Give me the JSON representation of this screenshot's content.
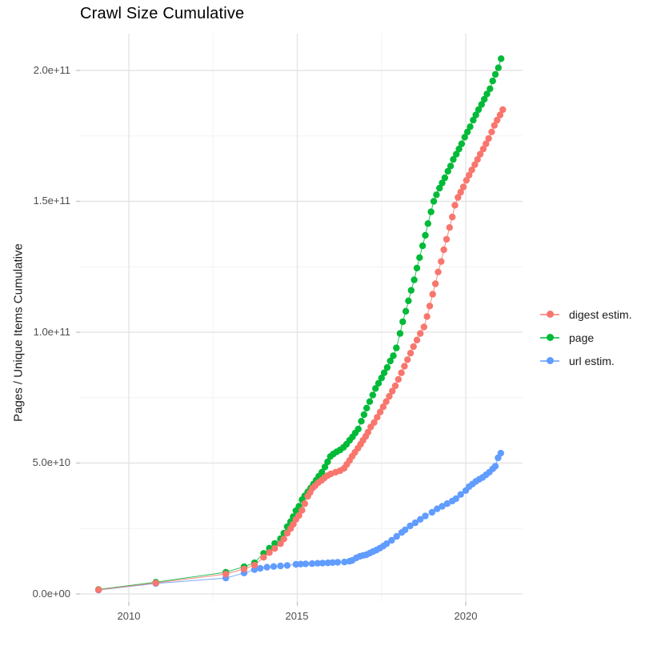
{
  "title": "Crawl Size Cumulative",
  "y_axis": {
    "label": "Pages / Unique Items Cumulative",
    "ticks": [
      "0.0e+00",
      "5.0e+10",
      "1.0e+11",
      "1.5e+11",
      "2.0e+11"
    ],
    "tick_values": [
      0,
      50000000000.0,
      100000000000.0,
      150000000000.0,
      200000000000.0
    ]
  },
  "x_axis": {
    "ticks": [
      "2010",
      "2015",
      "2020"
    ],
    "tick_values": [
      2010,
      2015,
      2020
    ]
  },
  "legend": {
    "items": [
      {
        "label": "digest estim.",
        "color": "#F8766D"
      },
      {
        "label": "page",
        "color": "#00BA38"
      },
      {
        "label": "url estim.",
        "color": "#619CFF"
      }
    ]
  },
  "chart_data": {
    "type": "scatter",
    "title": "Crawl Size Cumulative",
    "xlabel": "",
    "ylabel": "Pages / Unique Items Cumulative",
    "xlim": [
      2008.65,
      2021.7
    ],
    "ylim": [
      0,
      217000000000.0
    ],
    "x_major_ticks": [
      2010,
      2015,
      2020
    ],
    "x_minor_ticks": [
      2012.5,
      2017.5
    ],
    "y_major_ticks": [
      0,
      50000000000.0,
      100000000000.0,
      150000000000.0,
      200000000000.0
    ],
    "y_minor_ticks": [
      25000000000.0,
      75000000000.0,
      125000000000.0,
      175000000000.0
    ],
    "grid": true,
    "legend_position": "right",
    "series": [
      {
        "name": "page",
        "color": "#00BA38",
        "points": [
          [
            2009.1,
            1700000000.0
          ],
          [
            2010.8,
            4500000000.0
          ],
          [
            2012.88,
            8300000000.0
          ],
          [
            2013.42,
            10400000000.0
          ],
          [
            2013.73,
            11900000000.0
          ],
          [
            2014.0,
            15500000000.0
          ],
          [
            2014.17,
            17500000000.0
          ],
          [
            2014.33,
            19300000000.0
          ],
          [
            2014.5,
            21100000000.0
          ],
          [
            2014.6,
            23200000000.0
          ],
          [
            2014.7,
            25700000000.0
          ],
          [
            2014.8,
            27600000000.0
          ],
          [
            2014.88,
            29500000000.0
          ],
          [
            2014.96,
            31800000000.0
          ],
          [
            2015.05,
            33500000000.0
          ],
          [
            2015.14,
            36000000000.0
          ],
          [
            2015.22,
            37500000000.0
          ],
          [
            2015.31,
            39000000000.0
          ],
          [
            2015.4,
            40500000000.0
          ],
          [
            2015.48,
            42000000000.0
          ],
          [
            2015.56,
            43500000000.0
          ],
          [
            2015.64,
            45000000000.0
          ],
          [
            2015.73,
            46500000000.0
          ],
          [
            2015.82,
            48500000000.0
          ],
          [
            2015.9,
            50500000000.0
          ],
          [
            2015.98,
            52500000000.0
          ],
          [
            2016.07,
            53500000000.0
          ],
          [
            2016.17,
            54300000000.0
          ],
          [
            2016.27,
            55000000000.0
          ],
          [
            2016.37,
            56000000000.0
          ],
          [
            2016.46,
            57200000000.0
          ],
          [
            2016.55,
            58700000000.0
          ],
          [
            2016.64,
            60000000000.0
          ],
          [
            2016.72,
            61500000000.0
          ],
          [
            2016.81,
            63000000000.0
          ],
          [
            2016.9,
            66000000000.0
          ],
          [
            2016.98,
            68500000000.0
          ],
          [
            2017.06,
            71000000000.0
          ],
          [
            2017.15,
            73500000000.0
          ],
          [
            2017.24,
            76000000000.0
          ],
          [
            2017.32,
            78500000000.0
          ],
          [
            2017.41,
            80500000000.0
          ],
          [
            2017.5,
            82500000000.0
          ],
          [
            2017.58,
            84500000000.0
          ],
          [
            2017.67,
            86500000000.0
          ],
          [
            2017.76,
            89000000000.0
          ],
          [
            2017.85,
            91000000000.0
          ],
          [
            2017.94,
            94000000000.0
          ],
          [
            2018.05,
            99500000000.0
          ],
          [
            2018.13,
            104000000000.0
          ],
          [
            2018.22,
            108000000000.0
          ],
          [
            2018.3,
            112000000000.0
          ],
          [
            2018.38,
            116000000000.0
          ],
          [
            2018.47,
            120000000000.0
          ],
          [
            2018.55,
            124500000000.0
          ],
          [
            2018.63,
            128500000000.0
          ],
          [
            2018.72,
            133000000000.0
          ],
          [
            2018.8,
            137000000000.0
          ],
          [
            2018.88,
            141500000000.0
          ],
          [
            2018.97,
            146000000000.0
          ],
          [
            2019.05,
            150000000000.0
          ],
          [
            2019.13,
            152500000000.0
          ],
          [
            2019.22,
            155000000000.0
          ],
          [
            2019.3,
            157000000000.0
          ],
          [
            2019.38,
            159000000000.0
          ],
          [
            2019.47,
            161500000000.0
          ],
          [
            2019.55,
            163500000000.0
          ],
          [
            2019.63,
            166000000000.0
          ],
          [
            2019.72,
            168000000000.0
          ],
          [
            2019.8,
            170000000000.0
          ],
          [
            2019.88,
            172000000000.0
          ],
          [
            2019.97,
            174500000000.0
          ],
          [
            2020.05,
            176500000000.0
          ],
          [
            2020.13,
            178500000000.0
          ],
          [
            2020.22,
            181000000000.0
          ],
          [
            2020.3,
            183000000000.0
          ],
          [
            2020.38,
            185000000000.0
          ],
          [
            2020.47,
            187000000000.0
          ],
          [
            2020.55,
            189000000000.0
          ],
          [
            2020.63,
            191000000000.0
          ],
          [
            2020.72,
            193000000000.0
          ],
          [
            2020.8,
            196000000000.0
          ],
          [
            2020.88,
            198500000000.0
          ],
          [
            2020.97,
            201000000000.0
          ],
          [
            2021.05,
            204500000000.0
          ]
        ]
      },
      {
        "name": "url estim.",
        "color": "#619CFF",
        "points": [
          [
            2009.1,
            1500000000.0
          ],
          [
            2010.8,
            4000000000.0
          ],
          [
            2012.88,
            6100000000.0
          ],
          [
            2013.42,
            8000000000.0
          ],
          [
            2013.73,
            9300000000.0
          ],
          [
            2013.9,
            9800000000.0
          ],
          [
            2014.1,
            10200000000.0
          ],
          [
            2014.3,
            10500000000.0
          ],
          [
            2014.5,
            10700000000.0
          ],
          [
            2014.7,
            10900000000.0
          ],
          [
            2014.96,
            11300000000.0
          ],
          [
            2015.1,
            11400000000.0
          ],
          [
            2015.25,
            11500000000.0
          ],
          [
            2015.44,
            11600000000.0
          ],
          [
            2015.6,
            11700000000.0
          ],
          [
            2015.75,
            11800000000.0
          ],
          [
            2015.91,
            11900000000.0
          ],
          [
            2016.05,
            12000000000.0
          ],
          [
            2016.2,
            12100000000.0
          ],
          [
            2016.4,
            12200000000.0
          ],
          [
            2016.55,
            12500000000.0
          ],
          [
            2016.63,
            12800000000.0
          ],
          [
            2016.75,
            13800000000.0
          ],
          [
            2016.86,
            14400000000.0
          ],
          [
            2016.95,
            14700000000.0
          ],
          [
            2017.05,
            15000000000.0
          ],
          [
            2017.15,
            15600000000.0
          ],
          [
            2017.25,
            16200000000.0
          ],
          [
            2017.35,
            16800000000.0
          ],
          [
            2017.45,
            17500000000.0
          ],
          [
            2017.55,
            18300000000.0
          ],
          [
            2017.65,
            19200000000.0
          ],
          [
            2017.8,
            20500000000.0
          ],
          [
            2017.95,
            22000000000.0
          ],
          [
            2018.1,
            23500000000.0
          ],
          [
            2018.2,
            24500000000.0
          ],
          [
            2018.35,
            26000000000.0
          ],
          [
            2018.5,
            27200000000.0
          ],
          [
            2018.65,
            28500000000.0
          ],
          [
            2018.8,
            29800000000.0
          ],
          [
            2019.0,
            31200000000.0
          ],
          [
            2019.15,
            32500000000.0
          ],
          [
            2019.3,
            33500000000.0
          ],
          [
            2019.45,
            34500000000.0
          ],
          [
            2019.6,
            35500000000.0
          ],
          [
            2019.71,
            36400000000.0
          ],
          [
            2019.85,
            38000000000.0
          ],
          [
            2020.0,
            39500000000.0
          ],
          [
            2020.1,
            41000000000.0
          ],
          [
            2020.2,
            42000000000.0
          ],
          [
            2020.3,
            43000000000.0
          ],
          [
            2020.4,
            43800000000.0
          ],
          [
            2020.5,
            44500000000.0
          ],
          [
            2020.6,
            45500000000.0
          ],
          [
            2020.7,
            46500000000.0
          ],
          [
            2020.8,
            47800000000.0
          ],
          [
            2020.88,
            48800000000.0
          ],
          [
            2020.96,
            52000000000.0
          ],
          [
            2021.04,
            53800000000.0
          ]
        ]
      },
      {
        "name": "digest estim.",
        "color": "#F8766D",
        "points": [
          [
            2009.1,
            1600000000.0
          ],
          [
            2010.8,
            4200000000.0
          ],
          [
            2012.88,
            7600000000.0
          ],
          [
            2013.42,
            9500000000.0
          ],
          [
            2013.73,
            11000000000.0
          ],
          [
            2014.0,
            14000000000.0
          ],
          [
            2014.17,
            15800000000.0
          ],
          [
            2014.33,
            17400000000.0
          ],
          [
            2014.5,
            19200000000.0
          ],
          [
            2014.6,
            21000000000.0
          ],
          [
            2014.7,
            23200000000.0
          ],
          [
            2014.8,
            25000000000.0
          ],
          [
            2014.88,
            26600000000.0
          ],
          [
            2014.96,
            28500000000.0
          ],
          [
            2015.05,
            30000000000.0
          ],
          [
            2015.14,
            32000000000.0
          ],
          [
            2015.22,
            34500000000.0
          ],
          [
            2015.31,
            37300000000.0
          ],
          [
            2015.38,
            38800000000.0
          ],
          [
            2015.45,
            40400000000.0
          ],
          [
            2015.53,
            41300000000.0
          ],
          [
            2015.62,
            42500000000.0
          ],
          [
            2015.72,
            43400000000.0
          ],
          [
            2015.8,
            44300000000.0
          ],
          [
            2015.9,
            45200000000.0
          ],
          [
            2016.0,
            45900000000.0
          ],
          [
            2016.14,
            46500000000.0
          ],
          [
            2016.27,
            47100000000.0
          ],
          [
            2016.39,
            48000000000.0
          ],
          [
            2016.47,
            49500000000.0
          ],
          [
            2016.55,
            51000000000.0
          ],
          [
            2016.63,
            52600000000.0
          ],
          [
            2016.71,
            54100000000.0
          ],
          [
            2016.8,
            55700000000.0
          ],
          [
            2016.88,
            57200000000.0
          ],
          [
            2016.95,
            58700000000.0
          ],
          [
            2017.03,
            60200000000.0
          ],
          [
            2017.1,
            61800000000.0
          ],
          [
            2017.18,
            63800000000.0
          ],
          [
            2017.28,
            65500000000.0
          ],
          [
            2017.37,
            67500000000.0
          ],
          [
            2017.46,
            69500000000.0
          ],
          [
            2017.55,
            71500000000.0
          ],
          [
            2017.64,
            73500000000.0
          ],
          [
            2017.73,
            75500000000.0
          ],
          [
            2017.82,
            77500000000.0
          ],
          [
            2017.91,
            79500000000.0
          ],
          [
            2018.0,
            82000000000.0
          ],
          [
            2018.09,
            84500000000.0
          ],
          [
            2018.18,
            87000000000.0
          ],
          [
            2018.27,
            89500000000.0
          ],
          [
            2018.36,
            92000000000.0
          ],
          [
            2018.45,
            94500000000.0
          ],
          [
            2018.55,
            97000000000.0
          ],
          [
            2018.65,
            99500000000.0
          ],
          [
            2018.76,
            102000000000.0
          ],
          [
            2018.85,
            106000000000.0
          ],
          [
            2018.93,
            110000000000.0
          ],
          [
            2019.02,
            114500000000.0
          ],
          [
            2019.1,
            118500000000.0
          ],
          [
            2019.18,
            123000000000.0
          ],
          [
            2019.27,
            127000000000.0
          ],
          [
            2019.35,
            131500000000.0
          ],
          [
            2019.43,
            135500000000.0
          ],
          [
            2019.52,
            140000000000.0
          ],
          [
            2019.6,
            144000000000.0
          ],
          [
            2019.68,
            148500000000.0
          ],
          [
            2019.77,
            151500000000.0
          ],
          [
            2019.85,
            153500000000.0
          ],
          [
            2019.93,
            155500000000.0
          ],
          [
            2020.02,
            158000000000.0
          ],
          [
            2020.1,
            160000000000.0
          ],
          [
            2020.18,
            162000000000.0
          ],
          [
            2020.27,
            164000000000.0
          ],
          [
            2020.35,
            166000000000.0
          ],
          [
            2020.43,
            168000000000.0
          ],
          [
            2020.52,
            170000000000.0
          ],
          [
            2020.6,
            172000000000.0
          ],
          [
            2020.68,
            174000000000.0
          ],
          [
            2020.77,
            176500000000.0
          ],
          [
            2020.85,
            179000000000.0
          ],
          [
            2020.93,
            181000000000.0
          ],
          [
            2021.02,
            183000000000.0
          ],
          [
            2021.1,
            185000000000.0
          ]
        ]
      }
    ]
  }
}
